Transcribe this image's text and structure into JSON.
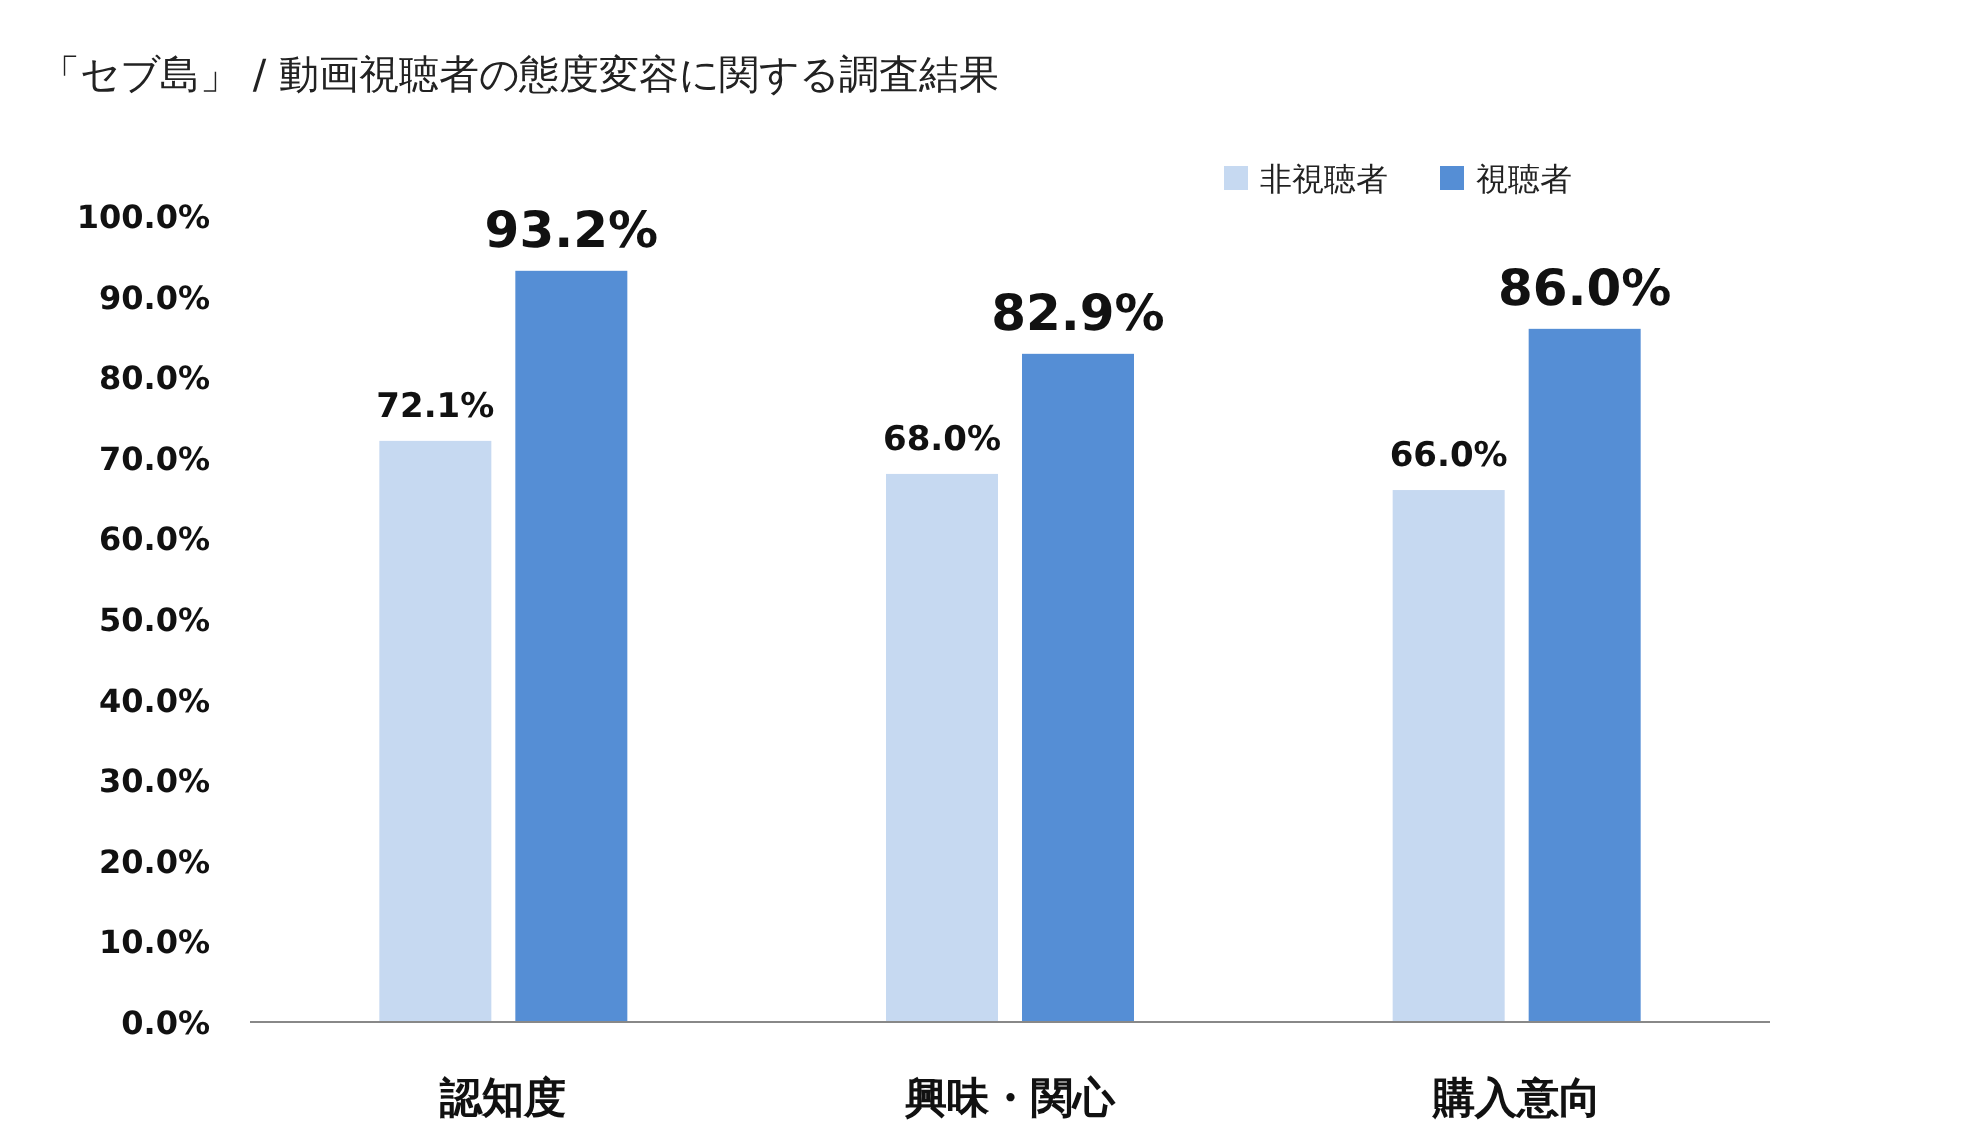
{
  "chart_data": {
    "type": "bar",
    "title": "「セブ島」 / 動画視聴者の態度変容に関する調査結果",
    "categories": [
      "認知度",
      "興味・関心",
      "購入意向"
    ],
    "series": [
      {
        "name": "非視聴者",
        "color": "#c6d9f1",
        "values": [
          72.1,
          68.0,
          66.0
        ],
        "value_labels": [
          "72.1%",
          "68.0%",
          "66.0%"
        ]
      },
      {
        "name": "視聴者",
        "color": "#558ed5",
        "values": [
          93.2,
          82.9,
          86.0
        ],
        "value_labels": [
          "93.2%",
          "82.9%",
          "86.0%"
        ]
      }
    ],
    "ylim": [
      0,
      100
    ],
    "yticks": [
      {
        "value": 0,
        "label": "0.0%"
      },
      {
        "value": 10,
        "label": "10.0%"
      },
      {
        "value": 20,
        "label": "20.0%"
      },
      {
        "value": 30,
        "label": "30.0%"
      },
      {
        "value": 40,
        "label": "40.0%"
      },
      {
        "value": 50,
        "label": "50.0%"
      },
      {
        "value": 60,
        "label": "60.0%"
      },
      {
        "value": 70,
        "label": "70.0%"
      },
      {
        "value": 80,
        "label": "80.0%"
      },
      {
        "value": 90,
        "label": "90.0%"
      },
      {
        "value": 100,
        "label": "100.0%"
      }
    ],
    "grid": false,
    "legend": "top right"
  }
}
